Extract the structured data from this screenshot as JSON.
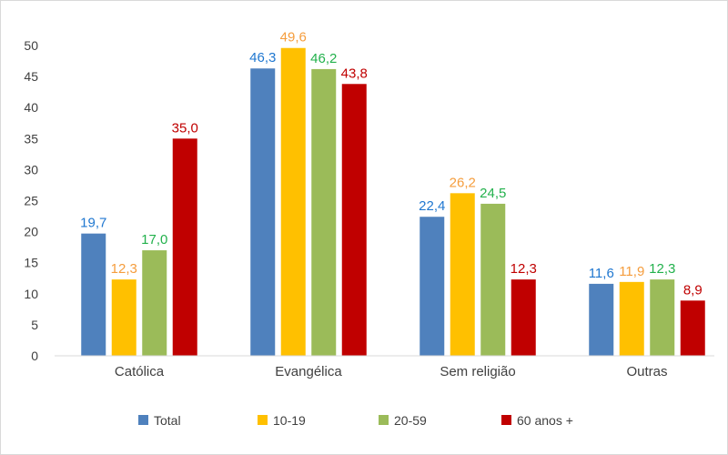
{
  "chart_data": {
    "type": "bar",
    "categories": [
      "Católica",
      "Evangélica",
      "Sem religião",
      "Outras"
    ],
    "series": [
      {
        "name": "Total",
        "color": "#4f81bd",
        "label_color": "#1f77d0",
        "values": [
          19.7,
          46.3,
          22.4,
          11.6
        ]
      },
      {
        "name": "10-19",
        "color": "#ffc000",
        "label_color": "#f59d3d",
        "values": [
          12.3,
          49.6,
          26.2,
          11.9
        ]
      },
      {
        "name": "20-59",
        "color": "#9bbb59",
        "label_color": "#22b14c",
        "values": [
          17.0,
          46.2,
          24.5,
          12.3
        ]
      },
      {
        "name": "60 anos +",
        "color": "#c00000",
        "label_color": "#c00000",
        "values": [
          35.0,
          43.8,
          12.3,
          8.9
        ]
      }
    ],
    "data_labels": [
      [
        "19,7",
        "46,3",
        "22,4",
        "11,6"
      ],
      [
        "12,3",
        "49,6",
        "26,2",
        "11,9"
      ],
      [
        "17,0",
        "46,2",
        "24,5",
        "12,3"
      ],
      [
        "35,0",
        "43,8",
        "12,3",
        "8,9"
      ]
    ],
    "y_ticks": [
      "0",
      "5",
      "10",
      "15",
      "20",
      "25",
      "30",
      "35",
      "40",
      "45",
      "50"
    ],
    "ylim": [
      0,
      50
    ],
    "legend_position": "bottom",
    "grid": false
  }
}
